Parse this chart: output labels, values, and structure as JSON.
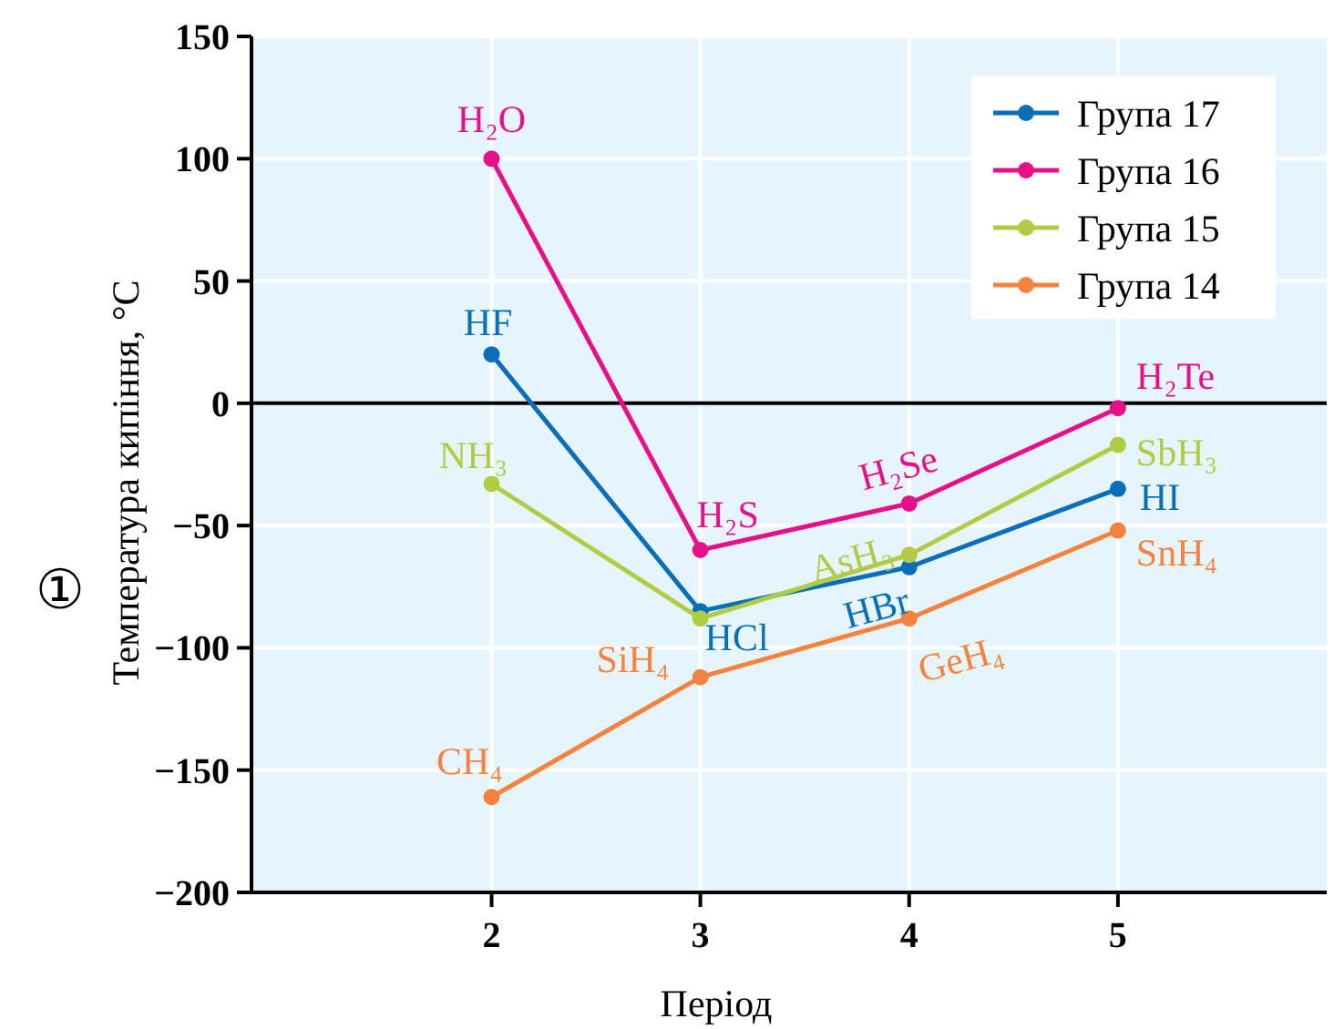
{
  "chart_data": {
    "type": "line",
    "xlabel": "Період",
    "ylabel": "Температура кипіння, °C",
    "x": [
      2,
      3,
      4,
      5
    ],
    "xlim": [
      0.85,
      6
    ],
    "xticks": [
      2,
      3,
      4,
      5
    ],
    "ylim": [
      -200,
      150
    ],
    "yticks": [
      -200,
      -150,
      -100,
      -50,
      0,
      50,
      100,
      150
    ],
    "grid": true,
    "legend": "top right",
    "marker": "circle",
    "line_style": "solid",
    "ref_lines": [
      {
        "axis": "y",
        "value": 0,
        "color": "#000000"
      }
    ],
    "series": [
      {
        "name": "Група 17",
        "color": "#0a6fb8",
        "values": [
          20,
          -85,
          -67,
          -35
        ]
      },
      {
        "name": "Група 16",
        "color": "#e6118a",
        "values": [
          100,
          -60,
          -41,
          -2
        ]
      },
      {
        "name": "Група 15",
        "color": "#b2cb45",
        "values": [
          -33,
          -88,
          -62,
          -17
        ]
      },
      {
        "name": "Група 14",
        "color": "#f5833f",
        "values": [
          -161,
          -112,
          -88,
          -52
        ]
      }
    ],
    "annotations": [
      {
        "text": "HF",
        "x": 2,
        "y": 20
      },
      {
        "text": "HCl",
        "x": 3,
        "y": -85
      },
      {
        "text": "HBr",
        "x": 4,
        "y": -67
      },
      {
        "text": "HI",
        "x": 5,
        "y": -35
      },
      {
        "text": "H₂O",
        "x": 2,
        "y": 100
      },
      {
        "text": "H₂S",
        "x": 3,
        "y": -60
      },
      {
        "text": "H₂Se",
        "x": 4,
        "y": -41
      },
      {
        "text": "H₂Te",
        "x": 5,
        "y": -2
      },
      {
        "text": "NH₃",
        "x": 2,
        "y": -33
      },
      {
        "text": "AsH₃",
        "x": 4,
        "y": -62
      },
      {
        "text": "SbH₃",
        "x": 5,
        "y": -17
      },
      {
        "text": "CH₄",
        "x": 2,
        "y": -161
      },
      {
        "text": "SiH₄",
        "x": 3,
        "y": -112
      },
      {
        "text": "GeH₄",
        "x": 4,
        "y": -88
      },
      {
        "text": "SnH₄",
        "x": 5,
        "y": -52
      },
      "①"
    ]
  }
}
